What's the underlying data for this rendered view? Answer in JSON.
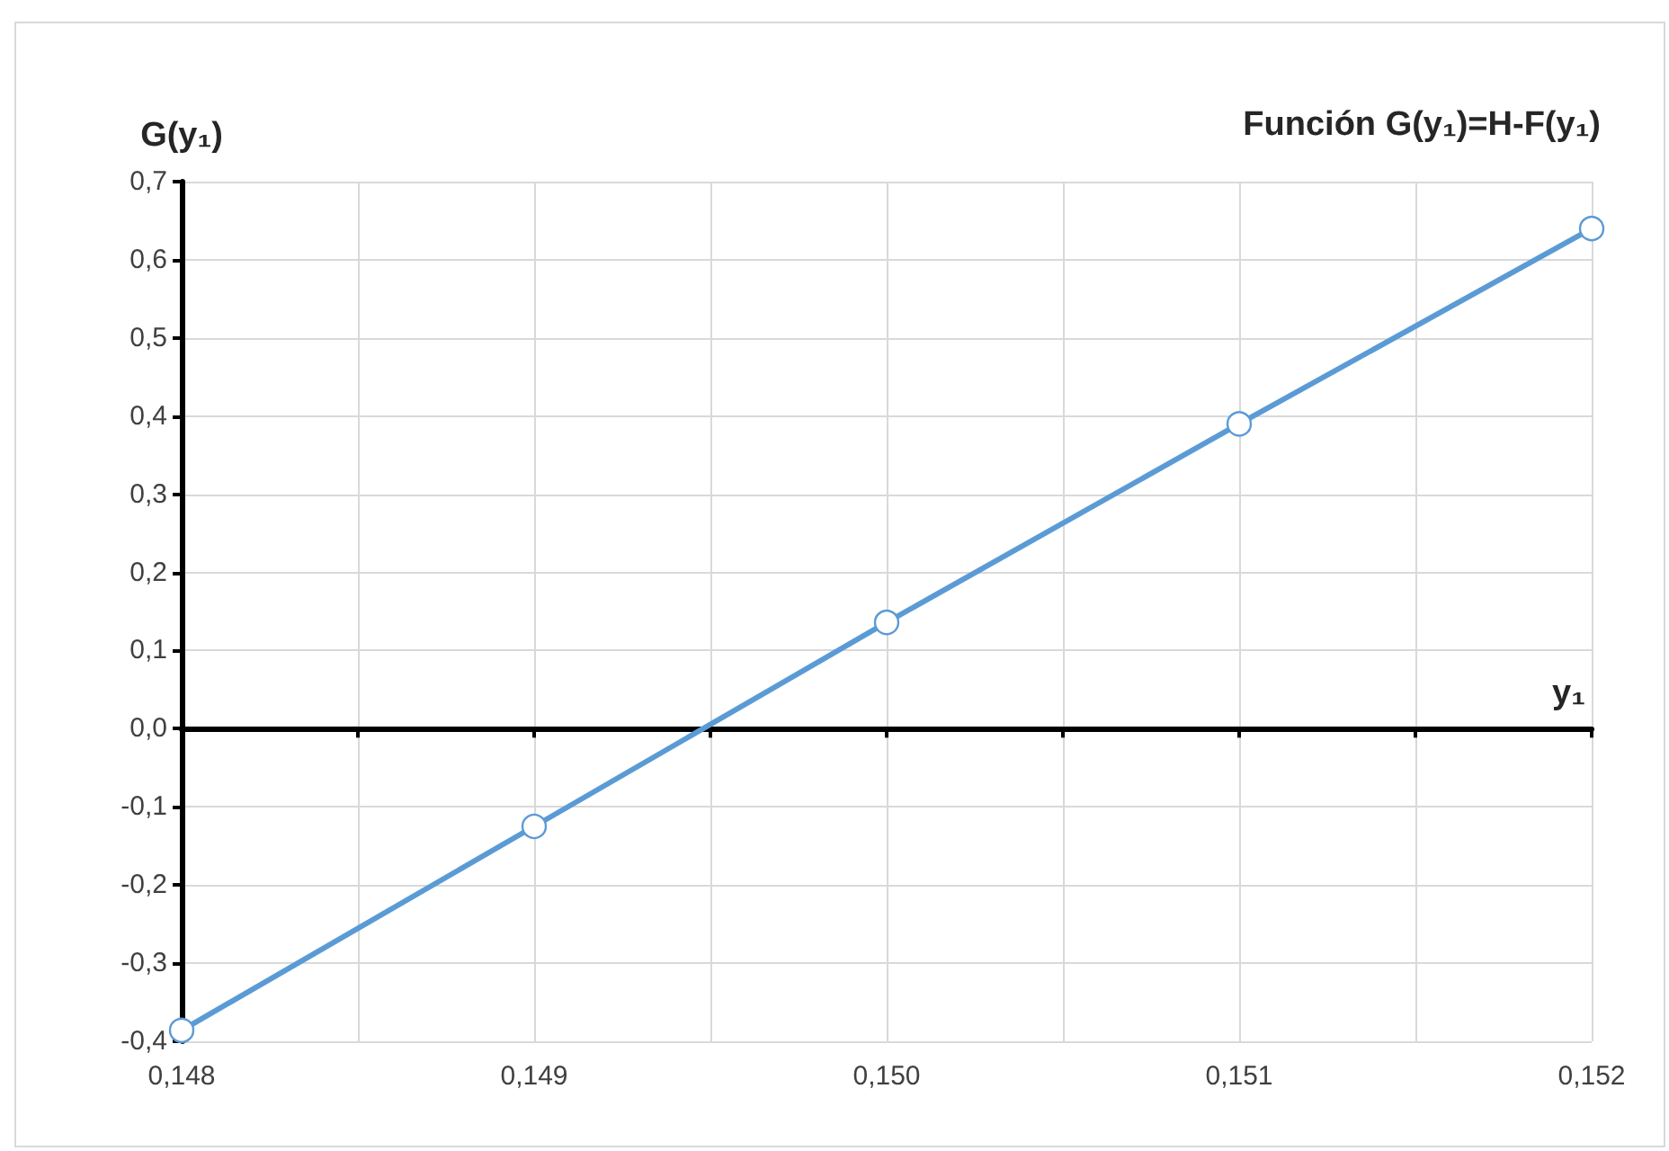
{
  "chart_data": {
    "type": "line",
    "title": "Función G(y₁)=H-F(y₁)",
    "xlabel": "y₁",
    "ylabel": "G(y₁)",
    "x": [
      0.148,
      0.149,
      0.15,
      0.151,
      0.152
    ],
    "series": [
      {
        "color": "#5b9bd5",
        "values": [
          -0.386,
          -0.125,
          0.136,
          0.39,
          0.64
        ]
      }
    ],
    "xlim": [
      0.148,
      0.152
    ],
    "xticks": [
      {
        "value": 0.148,
        "label": "0,148"
      },
      {
        "value": 0.1485,
        "label": null
      },
      {
        "value": 0.149,
        "label": "0,149"
      },
      {
        "value": 0.1495,
        "label": null
      },
      {
        "value": 0.15,
        "label": "0,150"
      },
      {
        "value": 0.1505,
        "label": null
      },
      {
        "value": 0.151,
        "label": "0,151"
      },
      {
        "value": 0.1515,
        "label": null
      },
      {
        "value": 0.152,
        "label": "0,152"
      }
    ],
    "ylim": [
      -0.4,
      0.7
    ],
    "yticks": [
      {
        "value": -0.4,
        "label": "-0,4"
      },
      {
        "value": -0.3,
        "label": "-0,3"
      },
      {
        "value": -0.2,
        "label": "-0,2"
      },
      {
        "value": -0.1,
        "label": "-0,1"
      },
      {
        "value": 0,
        "label": "0,0"
      },
      {
        "value": 0.1,
        "label": "0,1"
      },
      {
        "value": 0.2,
        "label": "0,2"
      },
      {
        "value": 0.3,
        "label": "0,3"
      },
      {
        "value": 0.4,
        "label": "0,4"
      },
      {
        "value": 0.5,
        "label": "0,5"
      },
      {
        "value": 0.6,
        "label": "0,6"
      },
      {
        "value": 0.7,
        "label": "0,7"
      }
    ],
    "grid": true,
    "marker": "circle",
    "line_style": "solid"
  }
}
